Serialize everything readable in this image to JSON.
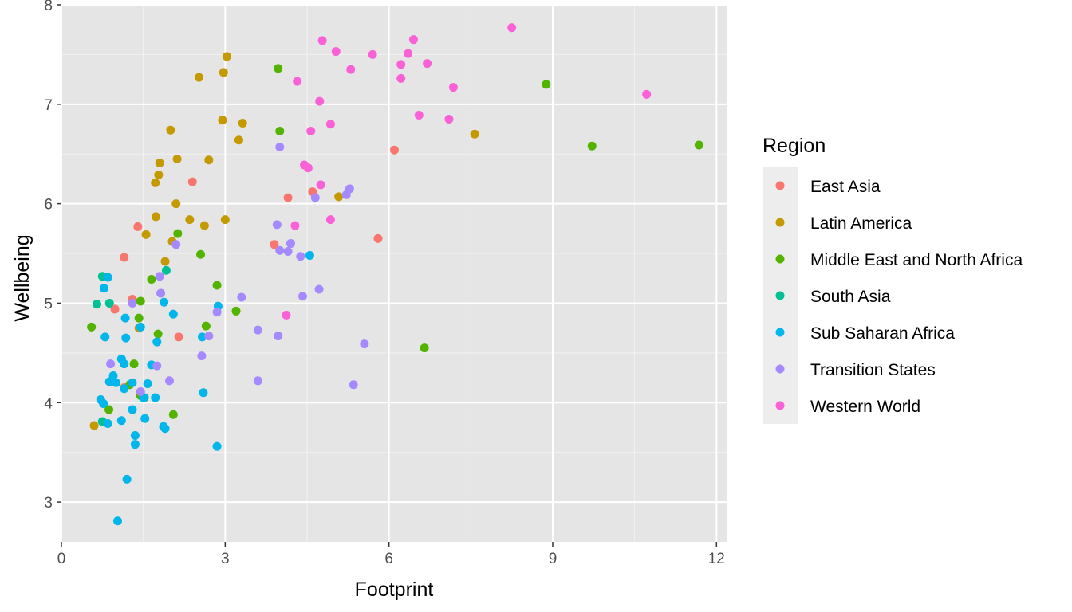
{
  "chart_data": {
    "type": "scatter",
    "xlabel": "Footprint",
    "ylabel": "Wellbeing",
    "xlim": [
      0,
      12.2
    ],
    "ylim": [
      2.6,
      8.0
    ],
    "x_ticks": [
      0,
      3,
      6,
      9,
      12
    ],
    "y_ticks": [
      3,
      4,
      5,
      6,
      7,
      8
    ],
    "x_tick_labels": [
      "0",
      "3",
      "6",
      "9",
      "12"
    ],
    "y_tick_labels": [
      "3",
      "4",
      "5",
      "6",
      "7",
      "8"
    ],
    "legend": {
      "title": "Region",
      "position": "right"
    },
    "panel_background": "#e5e5e5",
    "grid": true,
    "series": [
      {
        "name": "East Asia",
        "color": "#F8766D",
        "points": [
          [
            1.15,
            5.46
          ],
          [
            1.4,
            5.77
          ],
          [
            1.3,
            5.04
          ],
          [
            0.98,
            4.94
          ],
          [
            2.15,
            4.66
          ],
          [
            2.4,
            6.22
          ],
          [
            4.15,
            6.06
          ],
          [
            3.9,
            5.59
          ],
          [
            4.6,
            6.12
          ],
          [
            5.8,
            5.65
          ],
          [
            6.1,
            6.54
          ],
          [
            1.15,
            4.15
          ]
        ]
      },
      {
        "name": "Latin America",
        "color": "#C49A00",
        "points": [
          [
            3.03,
            7.48
          ],
          [
            2.52,
            7.27
          ],
          [
            2.97,
            7.32
          ],
          [
            2.95,
            6.84
          ],
          [
            3.32,
            6.81
          ],
          [
            2.0,
            6.74
          ],
          [
            3.25,
            6.64
          ],
          [
            1.8,
            6.41
          ],
          [
            2.7,
            6.44
          ],
          [
            2.12,
            6.45
          ],
          [
            1.78,
            6.29
          ],
          [
            1.72,
            6.21
          ],
          [
            2.1,
            6.0
          ],
          [
            1.73,
            5.87
          ],
          [
            2.35,
            5.84
          ],
          [
            3.0,
            5.84
          ],
          [
            2.62,
            5.78
          ],
          [
            1.55,
            5.69
          ],
          [
            2.03,
            5.62
          ],
          [
            1.9,
            5.42
          ],
          [
            1.42,
            4.75
          ],
          [
            0.6,
            3.77
          ],
          [
            5.08,
            6.07
          ],
          [
            7.57,
            6.7
          ]
        ]
      },
      {
        "name": "Middle East and North Africa",
        "color": "#53B400",
        "points": [
          [
            3.97,
            7.36
          ],
          [
            4.0,
            6.73
          ],
          [
            2.13,
            5.7
          ],
          [
            2.55,
            5.49
          ],
          [
            1.65,
            5.24
          ],
          [
            2.85,
            5.18
          ],
          [
            1.45,
            5.02
          ],
          [
            3.2,
            4.92
          ],
          [
            1.42,
            4.85
          ],
          [
            2.65,
            4.77
          ],
          [
            1.77,
            4.69
          ],
          [
            1.33,
            4.39
          ],
          [
            1.45,
            4.07
          ],
          [
            1.25,
            4.18
          ],
          [
            0.87,
            3.93
          ],
          [
            2.05,
            3.88
          ],
          [
            0.55,
            4.76
          ],
          [
            8.88,
            7.2
          ],
          [
            9.72,
            6.58
          ],
          [
            11.68,
            6.59
          ],
          [
            6.65,
            4.55
          ]
        ]
      },
      {
        "name": "South Asia",
        "color": "#00C094",
        "points": [
          [
            0.75,
            5.27
          ],
          [
            0.65,
            4.99
          ],
          [
            0.88,
            5.0
          ],
          [
            1.92,
            5.33
          ],
          [
            0.75,
            3.81
          ],
          [
            1.52,
            4.05
          ]
        ]
      },
      {
        "name": "Sub Saharan Africa",
        "color": "#00B6EB",
        "points": [
          [
            0.85,
            5.26
          ],
          [
            0.78,
            5.15
          ],
          [
            1.17,
            4.85
          ],
          [
            1.45,
            4.76
          ],
          [
            1.88,
            5.01
          ],
          [
            2.87,
            4.97
          ],
          [
            2.05,
            4.89
          ],
          [
            0.8,
            4.66
          ],
          [
            1.18,
            4.65
          ],
          [
            1.75,
            4.61
          ],
          [
            2.58,
            4.66
          ],
          [
            1.1,
            4.44
          ],
          [
            1.15,
            4.39
          ],
          [
            1.65,
            4.38
          ],
          [
            0.95,
            4.27
          ],
          [
            0.88,
            4.21
          ],
          [
            1.0,
            4.2
          ],
          [
            1.58,
            4.19
          ],
          [
            1.3,
            4.2
          ],
          [
            1.15,
            4.14
          ],
          [
            1.5,
            4.05
          ],
          [
            1.72,
            4.05
          ],
          [
            0.72,
            4.03
          ],
          [
            0.77,
            3.99
          ],
          [
            1.3,
            3.93
          ],
          [
            1.1,
            3.82
          ],
          [
            1.53,
            3.84
          ],
          [
            0.85,
            3.79
          ],
          [
            1.87,
            3.76
          ],
          [
            1.9,
            3.74
          ],
          [
            1.35,
            3.67
          ],
          [
            1.35,
            3.58
          ],
          [
            2.6,
            4.1
          ],
          [
            2.85,
            3.56
          ],
          [
            1.2,
            3.23
          ],
          [
            1.03,
            2.81
          ],
          [
            4.55,
            5.48
          ]
        ]
      },
      {
        "name": "Transition States",
        "color": "#A58AFF",
        "points": [
          [
            4.0,
            6.57
          ],
          [
            5.28,
            6.15
          ],
          [
            5.22,
            6.09
          ],
          [
            4.65,
            6.06
          ],
          [
            3.95,
            5.79
          ],
          [
            4.0,
            5.53
          ],
          [
            4.2,
            5.6
          ],
          [
            4.15,
            5.52
          ],
          [
            4.38,
            5.47
          ],
          [
            2.1,
            5.59
          ],
          [
            1.8,
            5.27
          ],
          [
            1.3,
            5.0
          ],
          [
            1.82,
            5.1
          ],
          [
            3.3,
            5.06
          ],
          [
            4.42,
            5.07
          ],
          [
            4.72,
            5.14
          ],
          [
            2.85,
            4.91
          ],
          [
            3.6,
            4.73
          ],
          [
            3.97,
            4.67
          ],
          [
            2.7,
            4.67
          ],
          [
            5.55,
            4.59
          ],
          [
            2.57,
            4.47
          ],
          [
            0.9,
            4.39
          ],
          [
            1.75,
            4.37
          ],
          [
            1.98,
            4.22
          ],
          [
            3.6,
            4.22
          ],
          [
            5.35,
            4.18
          ],
          [
            1.45,
            4.11
          ]
        ]
      },
      {
        "name": "Western World",
        "color": "#FB61D7",
        "points": [
          [
            8.25,
            7.77
          ],
          [
            6.45,
            7.65
          ],
          [
            4.78,
            7.64
          ],
          [
            5.03,
            7.53
          ],
          [
            5.7,
            7.5
          ],
          [
            6.35,
            7.51
          ],
          [
            6.22,
            7.4
          ],
          [
            6.7,
            7.41
          ],
          [
            5.3,
            7.35
          ],
          [
            6.22,
            7.26
          ],
          [
            4.32,
            7.23
          ],
          [
            7.18,
            7.17
          ],
          [
            10.72,
            7.1
          ],
          [
            4.73,
            7.03
          ],
          [
            6.55,
            6.89
          ],
          [
            7.1,
            6.85
          ],
          [
            4.93,
            6.8
          ],
          [
            4.57,
            6.73
          ],
          [
            4.45,
            6.39
          ],
          [
            4.52,
            6.36
          ],
          [
            4.75,
            6.19
          ],
          [
            4.28,
            5.78
          ],
          [
            4.93,
            5.84
          ],
          [
            4.12,
            4.88
          ]
        ]
      }
    ]
  }
}
